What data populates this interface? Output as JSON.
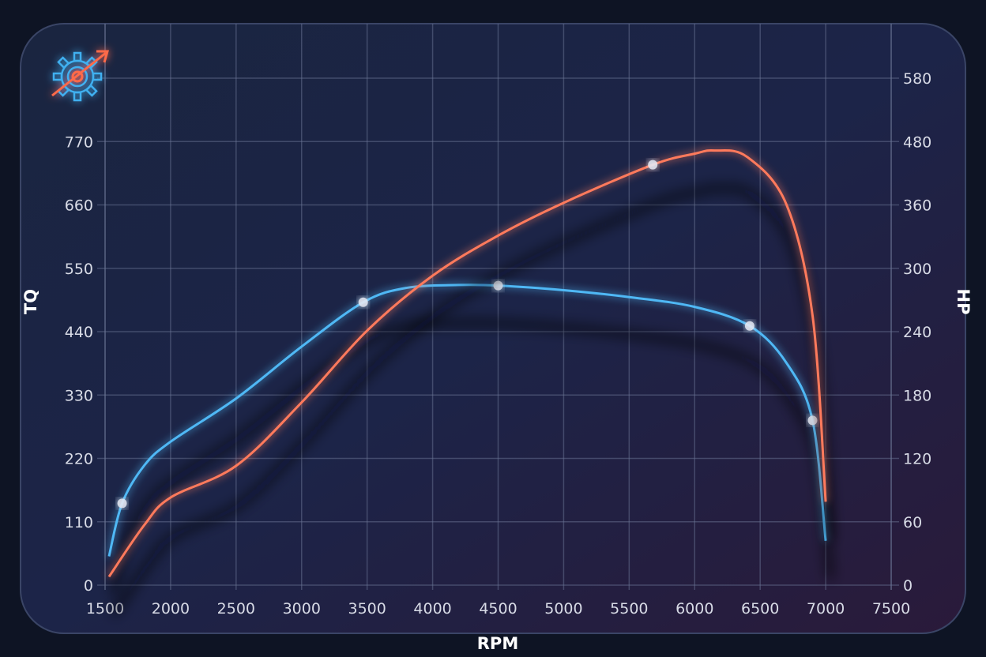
{
  "chart_data": {
    "type": "line",
    "title": "",
    "xlabel": "RPM",
    "ylabel_left": "TQ",
    "ylabel_right": "HP",
    "xlim": [
      1500,
      7500
    ],
    "x_ticks": [
      "1500",
      "2000",
      "2500",
      "3000",
      "3500",
      "4000",
      "4500",
      "5000",
      "5500",
      "6000",
      "6500",
      "7000",
      "7500"
    ],
    "y_left_ticks": [
      "0",
      "110",
      "220",
      "330",
      "440",
      "550",
      "660",
      "770"
    ],
    "y_right_ticks": [
      "0",
      "60",
      "120",
      "180",
      "240",
      "300",
      "360",
      "480",
      "580"
    ],
    "grid": true,
    "series": [
      {
        "axis": "left",
        "color": "#4fb8f5",
        "x": [
          1530,
          1630,
          1800,
          2000,
          2500,
          3000,
          3470,
          3800,
          4200,
          4500,
          5000,
          5500,
          6000,
          6420,
          6700,
          6900,
          7000
        ],
        "y": [
          50,
          142,
          208,
          249,
          324,
          414,
          491,
          516,
          521,
          520,
          512,
          500,
          483,
          450,
          386,
          286,
          77
        ],
        "markers_x": [
          1630,
          3470,
          4500,
          6420,
          6900
        ]
      },
      {
        "axis": "right",
        "color": "#ff7a5c",
        "x": [
          1530,
          1800,
          2000,
          2500,
          3000,
          3500,
          4000,
          4500,
          5000,
          5680,
          6000,
          6150,
          6400,
          6700,
          6900,
          7000
        ],
        "y": [
          8,
          57,
          83,
          113,
          173,
          241,
          293,
          331,
          364,
          436,
          457,
          463,
          451,
          361,
          255,
          79
        ],
        "markers_x": [
          5680
        ]
      }
    ]
  },
  "icon": "gear-with-rising-arrow-icon",
  "colors": {
    "background": "#0e1424",
    "panel": "#1b2440",
    "grid": "#5a6484"
  }
}
